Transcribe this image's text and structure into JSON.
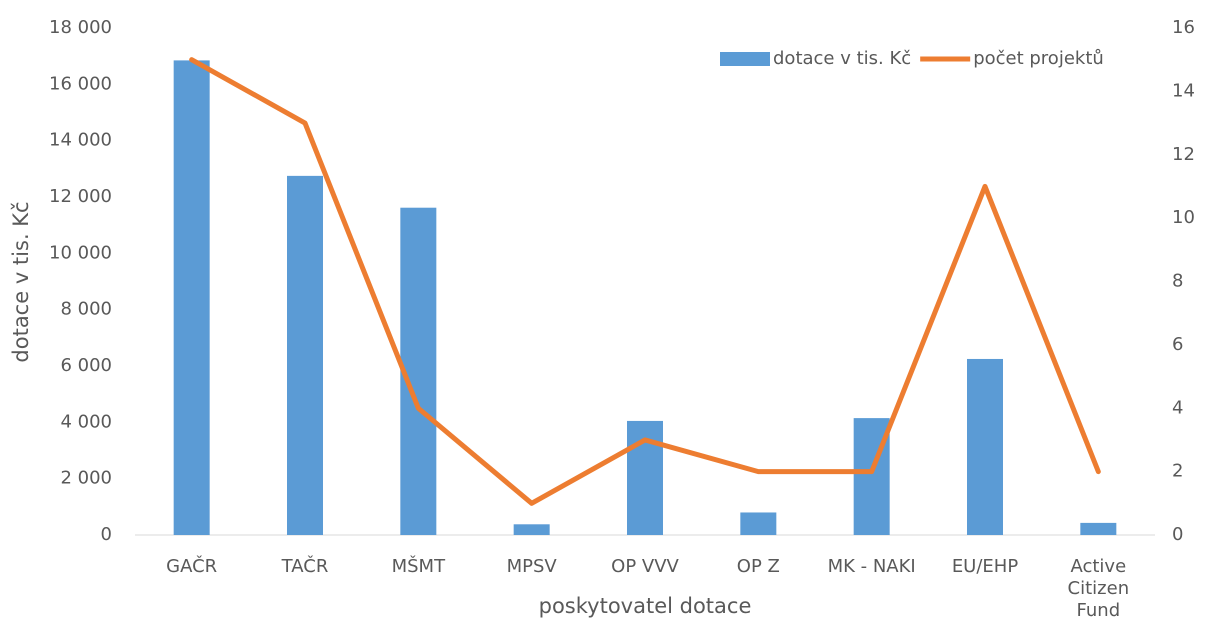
{
  "chart_data": {
    "type": "bar_line",
    "xlabel": "poskytovatel dotace",
    "ylabel": "dotace v tis. Kč",
    "categories": [
      "GAČR",
      "TAČR",
      "MŠMT",
      "MPSV",
      "OP VVV",
      "OP Z",
      "MK - NAKI",
      "EU/EHP",
      "Active Citizen Fund"
    ],
    "series": [
      {
        "name": "dotace v tis. Kč",
        "type": "bar",
        "color": "#5b9bd5",
        "values": [
          16850,
          12750,
          11620,
          380,
          4050,
          800,
          4150,
          6250,
          430
        ]
      },
      {
        "name": "počet projektů",
        "type": "line",
        "axis": "y2",
        "color": "#ed7d31",
        "values": [
          15,
          13,
          4,
          1,
          3,
          2,
          2,
          11,
          2
        ]
      }
    ],
    "ylim": [
      0,
      18000
    ],
    "yticks": [
      0,
      {
        "value": 2000,
        "label": "2 000"
      },
      {
        "value": 4000,
        "label": "4 000"
      },
      {
        "value": 6000,
        "label": "6 000"
      },
      {
        "value": 8000,
        "label": "8 000"
      },
      {
        "value": 10000,
        "label": "10 000"
      },
      {
        "value": 12000,
        "label": "12 000"
      },
      {
        "value": 14000,
        "label": "14 000"
      },
      {
        "value": 16000,
        "label": "16 000"
      },
      {
        "value": 18000,
        "label": "18 000"
      }
    ],
    "y2lim": [
      0,
      16
    ],
    "y2ticks": [
      0,
      2,
      4,
      6,
      8,
      10,
      12,
      14,
      16
    ],
    "legend": "top-right",
    "grid": false
  }
}
